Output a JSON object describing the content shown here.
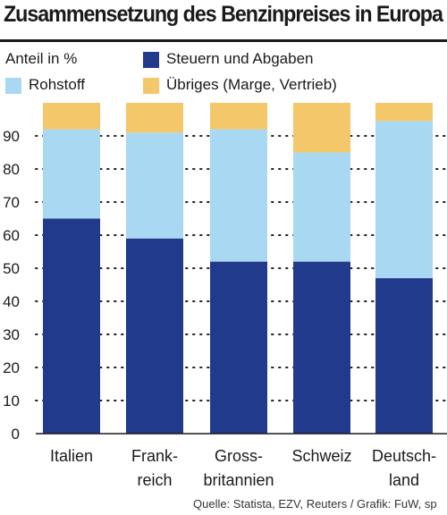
{
  "title": "Zusammensetzung des Benzinpreises in Europa",
  "legend": {
    "unit_label": "Anteil in %",
    "items": [
      {
        "label": "Steuern und Abgaben",
        "color": "#223a8c"
      },
      {
        "label": "Rohstoff",
        "color": "#a9d8f2"
      },
      {
        "label": "Übriges (Marge, Vertrieb)",
        "color": "#f4c86a"
      }
    ]
  },
  "source": "Quelle: Statista, EZV, Reuters / Grafik: FuW, sp",
  "chart_data": {
    "type": "bar",
    "stacked": true,
    "categories": [
      [
        "Italien"
      ],
      [
        "Frank-",
        "reich"
      ],
      [
        "Gross-",
        "britannien"
      ],
      [
        "Schweiz"
      ],
      [
        "Deutsch-",
        "land"
      ]
    ],
    "series": [
      {
        "name": "Steuern und Abgaben",
        "color": "#223a8c",
        "values": [
          65,
          59,
          52,
          52,
          47
        ]
      },
      {
        "name": "Rohstoff",
        "color": "#a9d8f2",
        "values": [
          27,
          32,
          40,
          33,
          47.5
        ]
      },
      {
        "name": "Übriges (Marge, Vertrieb)",
        "color": "#f4c86a",
        "values": [
          8,
          9,
          8,
          15,
          5.5
        ]
      }
    ],
    "ylabel": "Anteil in %",
    "ylim": [
      0,
      100
    ],
    "yticks": [
      0,
      10,
      20,
      30,
      40,
      50,
      60,
      70,
      80,
      90
    ],
    "grid": "dotted horizontal"
  }
}
